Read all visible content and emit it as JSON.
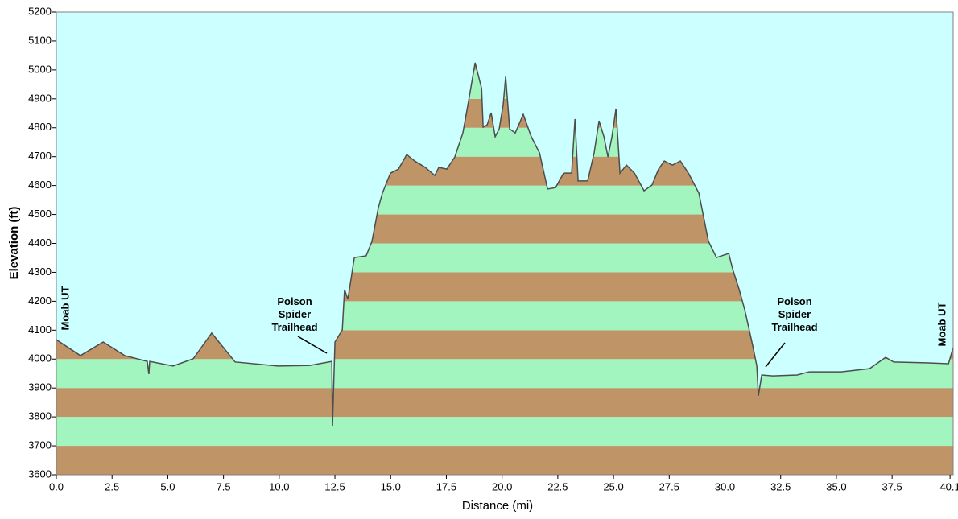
{
  "chart_data": {
    "type": "area",
    "xlabel": "Distance   (mi)",
    "ylabel": "Elevation (ft)",
    "background": "#ccffff",
    "band_colors": [
      "#bf9466",
      "#a3f5c0"
    ],
    "line_color": "#4d4d4d",
    "annotations": [
      "Moab UT",
      "Poison Spider Trailhead",
      "Poison Spider Trailhead",
      "Moab UT"
    ],
    "x": [
      0,
      1.08,
      2.1,
      3.07,
      4.08,
      4.15,
      4.19,
      5.24,
      6.14,
      6.97,
      8.02,
      9.94,
      11.38,
      12.36,
      12.39,
      12.5,
      12.83,
      12.93,
      13.08,
      13.37,
      13.9,
      14.16,
      14.45,
      14.63,
      14.99,
      15.35,
      15.72,
      16.08,
      16.55,
      16.98,
      17.16,
      17.52,
      17.88,
      18.24,
      18.5,
      18.79,
      19.08,
      19.15,
      19.33,
      19.51,
      19.69,
      19.87,
      20.05,
      20.16,
      20.34,
      20.59,
      20.95,
      21.31,
      21.68,
      22.04,
      22.4,
      22.76,
      23.12,
      23.27,
      23.41,
      23.84,
      24.13,
      24.35,
      24.57,
      24.75,
      24.93,
      25.11,
      25.29,
      25.58,
      25.94,
      26.37,
      26.73,
      27.02,
      27.28,
      27.64,
      28,
      28.36,
      28.83,
      29.26,
      29.62,
      30.17,
      30.35,
      30.64,
      30.89,
      31.25,
      31.43,
      31.5,
      31.65,
      32.15,
      33.24,
      33.78,
      34.32,
      35.22,
      36.49,
      37.21,
      37.57,
      39.02,
      40.03,
      40.24
    ],
    "values": [
      4067,
      4012,
      4059,
      4012,
      3992,
      3948,
      3992,
      3976,
      4001,
      4090,
      3990,
      3976,
      3978,
      3992,
      3767,
      4059,
      4101,
      4240,
      4207,
      4351,
      4357,
      4407,
      4524,
      4574,
      4643,
      4657,
      4707,
      4685,
      4663,
      4635,
      4663,
      4657,
      4699,
      4782,
      4894,
      5025,
      4936,
      4802,
      4810,
      4852,
      4769,
      4796,
      4880,
      4977,
      4796,
      4782,
      4846,
      4769,
      4713,
      4588,
      4593,
      4643,
      4643,
      4830,
      4616,
      4616,
      4713,
      4824,
      4769,
      4699,
      4769,
      4866,
      4643,
      4671,
      4643,
      4582,
      4602,
      4657,
      4685,
      4671,
      4685,
      4643,
      4574,
      4407,
      4351,
      4365,
      4310,
      4240,
      4170,
      4045,
      3976,
      3873,
      3945,
      3942,
      3945,
      3956,
      3956,
      3956,
      3967,
      4006,
      3990,
      3987,
      3984,
      4040
    ],
    "xlim": [
      0,
      40.24
    ],
    "ylim": [
      3600,
      5200
    ],
    "xticks": [
      {
        "value": 0,
        "label": "0.0"
      },
      2.5,
      {
        "value": 5,
        "label": "5.0"
      },
      7.5,
      {
        "value": 10,
        "label": "10.0"
      },
      12.5,
      {
        "value": 15,
        "label": "15.0"
      },
      17.5,
      {
        "value": 20,
        "label": "20.0"
      },
      22.5,
      {
        "value": 25,
        "label": "25.0"
      },
      27.5,
      {
        "value": 30,
        "label": "30.0"
      },
      32.5,
      {
        "value": 35,
        "label": "35.0"
      },
      37.5,
      40.1
    ],
    "yticks": [
      3600,
      3700,
      3800,
      3900,
      4000,
      4100,
      4200,
      4300,
      4400,
      4500,
      4600,
      4700,
      4800,
      4900,
      5000,
      5100,
      5200
    ]
  }
}
